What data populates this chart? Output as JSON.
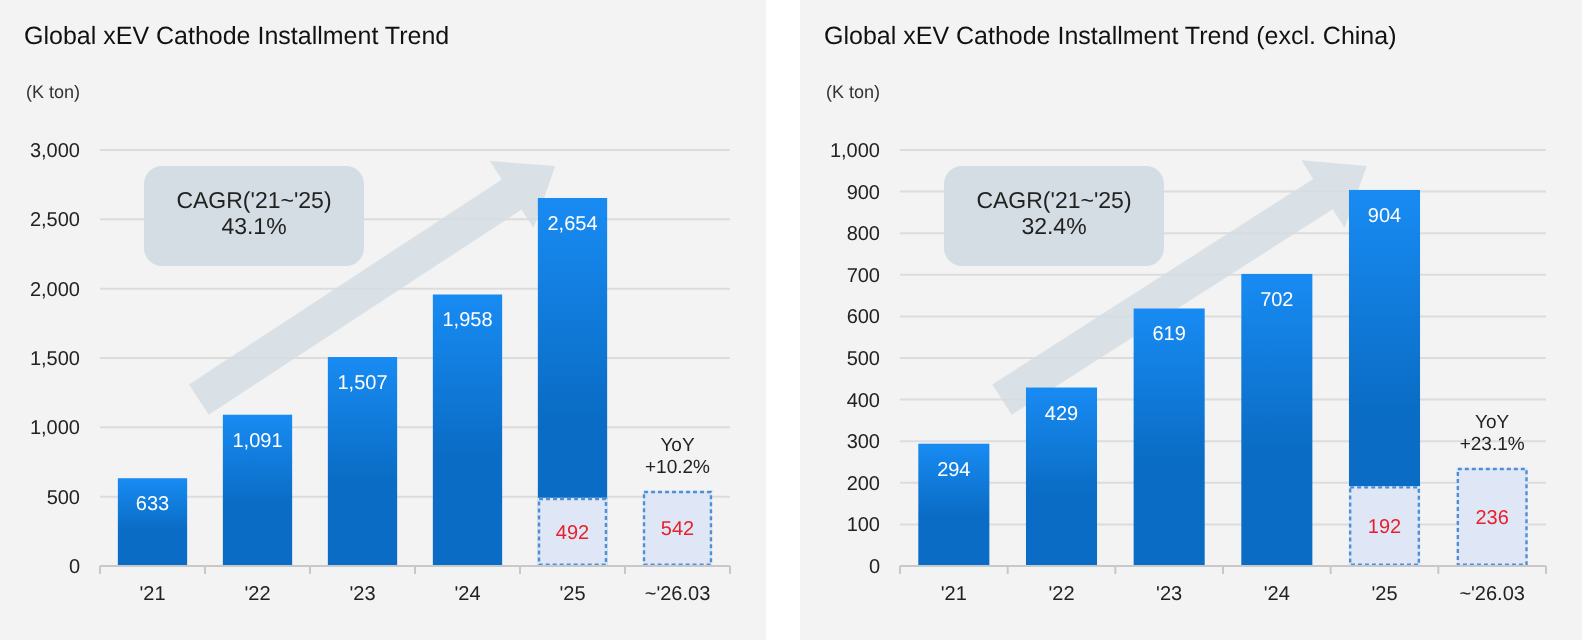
{
  "chart_data": [
    {
      "type": "bar",
      "title": "Global xEV Cathode Installment Trend",
      "ylabel": "(K ton)",
      "categories": [
        "'21",
        "'22",
        "'23",
        "'24",
        "'25",
        "~'26.03"
      ],
      "series": [
        {
          "color": "#0a6cc4",
          "values": [
            633,
            1091,
            1507,
            1958,
            2654,
            null
          ],
          "value_labels": [
            "633",
            "1,091",
            "1,507",
            "1,958",
            "2,654",
            null
          ]
        },
        {
          "color": "#dfe7f6",
          "line_style": "dashed",
          "values": [
            null,
            null,
            null,
            null,
            492,
            542
          ],
          "value_labels": [
            null,
            null,
            null,
            null,
            "492",
            "542"
          ]
        }
      ],
      "ylim": [
        0,
        3000
      ],
      "yticks": [
        {
          "value": 0,
          "label": "0"
        },
        {
          "value": 500,
          "label": "500"
        },
        {
          "value": 1000,
          "label": "1,000"
        },
        {
          "value": 1500,
          "label": "1,500"
        },
        {
          "value": 2000,
          "label": "2,000"
        },
        {
          "value": 2500,
          "label": "2,500"
        },
        {
          "value": 3000,
          "label": "3,000"
        }
      ],
      "grid": "y",
      "annotations": [
        "CAGR('21~'25)\n43.1%",
        {
          "text": "YoY\n+10.2%",
          "x": "~'26.03",
          "y": 542
        }
      ]
    },
    {
      "type": "bar",
      "title": "Global xEV Cathode Installment Trend (excl. China)",
      "ylabel": "(K ton)",
      "categories": [
        "'21",
        "'22",
        "'23",
        "'24",
        "'25",
        "~'26.03"
      ],
      "series": [
        {
          "color": "#0a6cc4",
          "values": [
            294,
            429,
            619,
            702,
            904,
            null
          ],
          "value_labels": [
            "294",
            "429",
            "619",
            "702",
            "904",
            null
          ]
        },
        {
          "color": "#dfe7f6",
          "line_style": "dashed",
          "values": [
            null,
            null,
            null,
            null,
            192,
            236
          ],
          "value_labels": [
            null,
            null,
            null,
            null,
            "192",
            "236"
          ]
        }
      ],
      "ylim": [
        0,
        1000
      ],
      "yticks": [
        {
          "value": 0,
          "label": "0"
        },
        {
          "value": 100,
          "label": "100"
        },
        {
          "value": 200,
          "label": "200"
        },
        {
          "value": 300,
          "label": "300"
        },
        {
          "value": 400,
          "label": "400"
        },
        {
          "value": 500,
          "label": "500"
        },
        {
          "value": 600,
          "label": "600"
        },
        {
          "value": 700,
          "label": "700"
        },
        {
          "value": 800,
          "label": "800"
        },
        {
          "value": 900,
          "label": "900"
        },
        {
          "value": 1000,
          "label": "1,000"
        }
      ],
      "grid": "y",
      "annotations": [
        "CAGR('21~'25)\n32.4%",
        {
          "text": "YoY\n+23.1%",
          "x": "~'26.03",
          "y": 236
        }
      ]
    }
  ]
}
